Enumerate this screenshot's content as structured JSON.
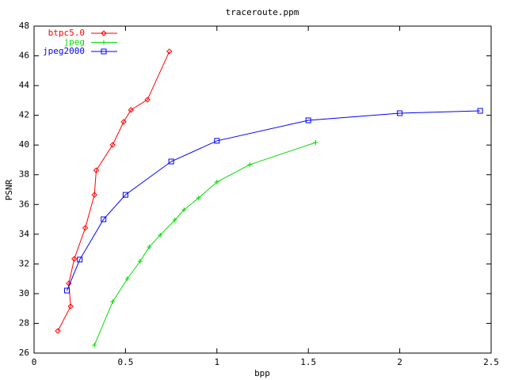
{
  "chart_data": {
    "type": "line",
    "title": "traceroute.ppm",
    "x_label": "bpp",
    "y_label": "PSNR",
    "xlim": [
      0,
      2.5
    ],
    "xticks": [
      0,
      0.5,
      1,
      1.5,
      2,
      2.5
    ],
    "ylim": [
      26,
      48
    ],
    "yticks": [
      26,
      28,
      30,
      32,
      34,
      36,
      38,
      40,
      42,
      44,
      46,
      48
    ],
    "grid": false,
    "legend": "top-left",
    "series": [
      {
        "name": "btpc5.0",
        "color": "#ff0000",
        "marker": "diamond",
        "x": [
          0.13,
          0.2,
          0.19,
          0.22,
          0.28,
          0.33,
          0.34,
          0.43,
          0.49,
          0.53,
          0.62,
          0.74
        ],
        "values": [
          27.49,
          29.14,
          30.69,
          32.34,
          34.42,
          36.65,
          38.3,
          40.01,
          41.56,
          42.36,
          43.05,
          46.3
        ]
      },
      {
        "name": "jpeg",
        "color": "#00dd00",
        "marker": "plus",
        "x": [
          0.33,
          0.43,
          0.51,
          0.58,
          0.63,
          0.69,
          0.77,
          0.82,
          0.9,
          1.0,
          1.18,
          1.54
        ],
        "values": [
          26.53,
          29.46,
          31.0,
          32.18,
          33.14,
          33.94,
          34.95,
          35.64,
          36.44,
          37.51,
          38.68,
          40.17
        ]
      },
      {
        "name": "jpeg2000",
        "color": "#0000ff",
        "marker": "square",
        "x": [
          0.18,
          0.25,
          0.38,
          0.5,
          0.75,
          1.0,
          1.5,
          2.0,
          2.44
        ],
        "values": [
          30.21,
          32.29,
          35.0,
          36.65,
          38.89,
          40.28,
          41.66,
          42.14,
          42.3
        ]
      }
    ]
  }
}
